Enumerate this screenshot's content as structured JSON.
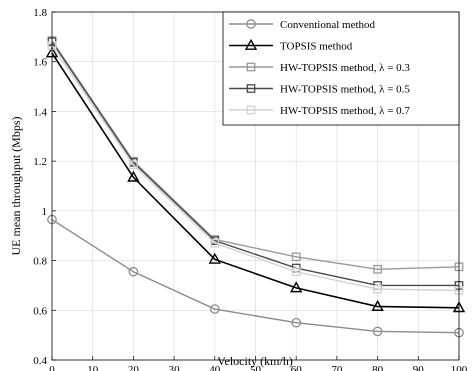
{
  "chart_data": {
    "type": "line",
    "title": "",
    "xlabel": "Velocity (km/h)",
    "ylabel": "UE mean throughput (Mbps)",
    "xlim": [
      0,
      100
    ],
    "ylim": [
      0.4,
      1.8
    ],
    "grid": true,
    "legend_position": "top-right",
    "x": [
      0,
      20,
      40,
      60,
      80,
      100
    ],
    "x_ticks": [
      "0",
      "10",
      "20",
      "30",
      "40",
      "50",
      "60",
      "70",
      "80",
      "90",
      "100"
    ],
    "y_ticks": [
      "0.4",
      "0.6",
      "0.8",
      "1",
      "1.2",
      "1.4",
      "1.6",
      "1.8"
    ],
    "series": [
      {
        "name": "Conventional method",
        "values": [
          0.965,
          0.755,
          0.605,
          0.55,
          0.515,
          0.51
        ],
        "color": "#8c8c8c",
        "marker": "circle"
      },
      {
        "name": "TOPSIS method",
        "values": [
          1.635,
          1.135,
          0.805,
          0.69,
          0.615,
          0.61
        ],
        "color": "#000000",
        "marker": "triangle"
      },
      {
        "name": "HW-TOPSIS method, λ = 0.3",
        "values": [
          1.685,
          1.2,
          0.885,
          0.815,
          0.765,
          0.775
        ],
        "color": "#9a9a9a",
        "marker": "square"
      },
      {
        "name": "HW-TOPSIS method, λ = 0.5",
        "values": [
          1.68,
          1.195,
          0.88,
          0.77,
          0.7,
          0.7
        ],
        "color": "#4a4a4a",
        "marker": "square"
      },
      {
        "name": "HW-TOPSIS method, λ = 0.7",
        "values": [
          1.665,
          1.185,
          0.87,
          0.755,
          0.685,
          0.68
        ],
        "color": "#d2d2d2",
        "marker": "square"
      }
    ]
  }
}
